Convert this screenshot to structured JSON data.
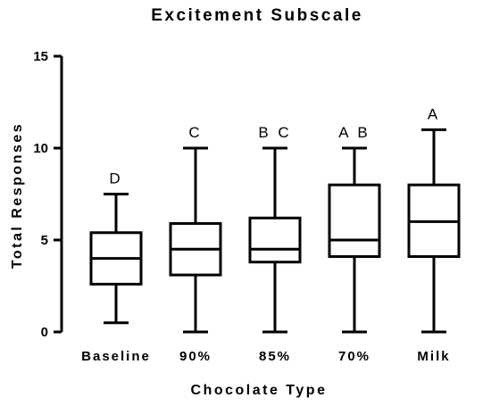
{
  "chart_data": {
    "type": "box",
    "title": "Excitement Subscale",
    "xlabel": "Chocolate Type",
    "ylabel": "Total Responses",
    "ylim": [
      0,
      15
    ],
    "yticks": [
      0,
      5,
      10,
      15
    ],
    "ytick_labels": [
      "0",
      "5",
      "10",
      "15"
    ],
    "categories": [
      "Baseline",
      "90%",
      "85%",
      "70%",
      "Milk"
    ],
    "boxes": [
      {
        "category": "Baseline",
        "min": 0.5,
        "q1": 2.6,
        "median": 4.0,
        "q3": 5.4,
        "max": 7.5,
        "group": "D"
      },
      {
        "category": "90%",
        "min": 0,
        "q1": 3.1,
        "median": 4.5,
        "q3": 5.9,
        "max": 10,
        "group": "C"
      },
      {
        "category": "85%",
        "min": 0,
        "q1": 3.8,
        "median": 4.5,
        "q3": 6.2,
        "max": 10,
        "group": "B C"
      },
      {
        "category": "70%",
        "min": 0,
        "q1": 4.1,
        "median": 5.0,
        "q3": 8.0,
        "max": 10,
        "group": "A B"
      },
      {
        "category": "Milk",
        "min": 0,
        "q1": 4.1,
        "median": 6.0,
        "q3": 8.0,
        "max": 11,
        "group": "A"
      }
    ],
    "grid": false,
    "colors": {
      "stroke": "#000000",
      "fill": "#ffffff"
    }
  }
}
